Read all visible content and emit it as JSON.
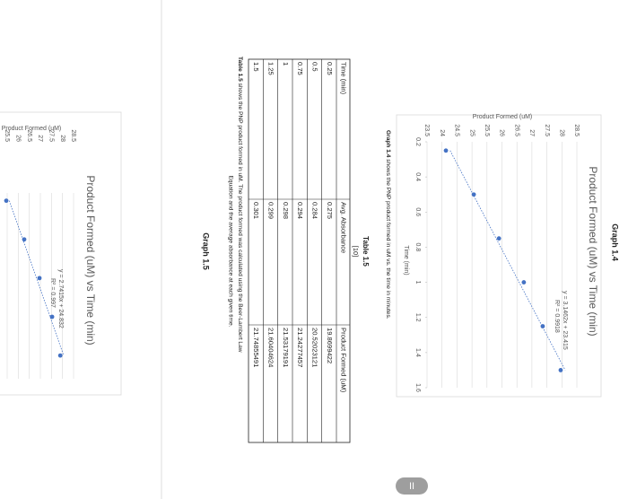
{
  "headings": [
    "Graph 1.4",
    "Graph 1.5"
  ],
  "chart_data": [
    {
      "type": "scatter",
      "title": "Product Formed (uM) vs Time (min)",
      "x_label": "Time (min)",
      "y_label": "Product Formed (uM)",
      "x": [
        0.25,
        0.5,
        0.75,
        1,
        1.25,
        1.5
      ],
      "values": [
        24.13,
        25.06,
        25.9,
        26.73,
        27.36,
        27.96
      ],
      "color": "#4472c4",
      "trendline": {
        "equation": "y = 3.1462x + 23.415",
        "r_squared": "R² = 0.9918"
      },
      "xlim": [
        0.2,
        1.6
      ],
      "xticks": [
        0.2,
        0.4,
        0.6,
        0.8,
        1,
        1.2,
        1.4,
        1.6
      ],
      "ylim": [
        23.5,
        28.5
      ],
      "yticks": [
        23.5,
        24,
        24.5,
        25,
        25.5,
        26,
        26.5,
        27,
        27.5,
        28,
        28.5
      ],
      "grid": true
    },
    {
      "type": "scatter",
      "title": "Product Formed (uM) vs Time (min)",
      "y_label": "Product Formed (uM)",
      "x": [
        0.25,
        0.5,
        0.75,
        1,
        1.25
      ],
      "values": [
        25.46,
        26.27,
        26.96,
        27.53,
        27.9
      ],
      "color": "#4472c4",
      "trendline": {
        "equation": "y = 2.7415x + 24.832",
        "r_squared": "R² = 0.997"
      },
      "xlim": [
        0.2,
        1.4
      ],
      "ylim": [
        25.5,
        28.5
      ],
      "yticks": [
        25.5,
        26,
        26.5,
        27,
        27.5,
        28,
        28.5
      ],
      "grid": true
    }
  ],
  "captions": [
    {
      "label": "Graph 1.4",
      "text": " shows the PNP product formed in uM vs. the time in minutes."
    },
    {
      "label": "Table 1.5",
      "lines": [
        " shows the PNP product formed in uM. The product formed was calculated using the Beer-Lambert Law",
        "Equation and the average absorbance at each given time."
      ]
    }
  ],
  "table": {
    "title": "Table 1.5",
    "reference": "[10]",
    "header": [
      "Time (min)",
      "Avg. Absorbance",
      "Product Formed (uM)"
    ],
    "rows": [
      [
        0.25,
        0.275,
        19.8699422
      ],
      [
        0.5,
        0.284,
        20.52023121
      ],
      [
        0.75,
        0.294,
        21.24277457
      ],
      [
        1,
        0.298,
        21.53179191
      ],
      [
        1.25,
        0.299,
        21.60404624
      ],
      [
        1.5,
        0.301,
        21.74855491
      ]
    ]
  },
  "ui": {
    "pause_button": "II"
  }
}
